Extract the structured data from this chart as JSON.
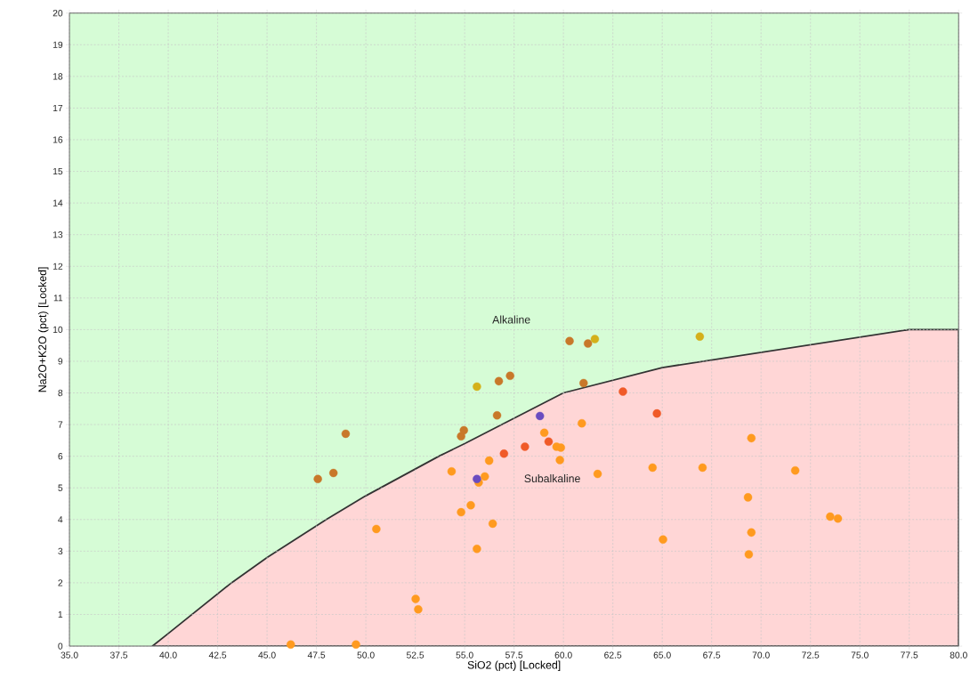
{
  "chart_data": {
    "type": "scatter",
    "xlabel": "SiO2 (pct) [Locked]",
    "ylabel": "Na2O+K2O (pct) [Locked]",
    "xlim": [
      35,
      80
    ],
    "ylim": [
      0,
      20
    ],
    "xticks": [
      {
        "value": 35,
        "label": "35.0"
      },
      {
        "value": 37.5,
        "label": "37.5"
      },
      {
        "value": 40,
        "label": "40.0"
      },
      {
        "value": 42.5,
        "label": "42.5"
      },
      {
        "value": 45,
        "label": "45.0"
      },
      {
        "value": 47.5,
        "label": "47.5"
      },
      {
        "value": 50,
        "label": "50.0"
      },
      {
        "value": 52.5,
        "label": "52.5"
      },
      {
        "value": 55,
        "label": "55.0"
      },
      {
        "value": 57.5,
        "label": "57.5"
      },
      {
        "value": 60,
        "label": "60.0"
      },
      {
        "value": 62.5,
        "label": "62.5"
      },
      {
        "value": 65,
        "label": "65.0"
      },
      {
        "value": 67.5,
        "label": "67.5"
      },
      {
        "value": 70,
        "label": "70.0"
      },
      {
        "value": 72.5,
        "label": "72.5"
      },
      {
        "value": 75,
        "label": "75.0"
      },
      {
        "value": 77.5,
        "label": "77.5"
      },
      {
        "value": 80,
        "label": "80.0"
      }
    ],
    "yticks": [
      0,
      1,
      2,
      3,
      4,
      5,
      6,
      7,
      8,
      9,
      10,
      11,
      12,
      13,
      14,
      15,
      16,
      17,
      18,
      19,
      20
    ],
    "grid": true,
    "marker": "circle",
    "bands": [
      {
        "axis": "y",
        "from": 0,
        "to": 20,
        "color": "#d6fcd6"
      }
    ],
    "annotations": [
      "Alkaline",
      "Subalkaline"
    ],
    "series": [
      {
        "type": "area",
        "marker": "none",
        "color": "#ffd6d6",
        "x": [
          39.2,
          40,
          43.2,
          45,
          48,
          50,
          53.7,
          55,
          60,
          65,
          77.5,
          80
        ],
        "values": [
          0,
          0.4,
          2,
          2.8,
          4,
          4.75,
          6,
          6.4,
          8,
          8.8,
          10,
          10
        ]
      },
      {
        "color": "#ff9a1f",
        "x": [
          46.2,
          49.5,
          50.53,
          52.52,
          52.65,
          54.34,
          54.82,
          55.31,
          55.62,
          55.71,
          56.02,
          56.24,
          56.42,
          59.03,
          59.65,
          59.87,
          59.82,
          60.93,
          61.73,
          64.51,
          65.04,
          67.04,
          69.34,
          69.51,
          69.51,
          69.38,
          71.73,
          73.5,
          73.89
        ],
        "values": [
          0.05,
          0.05,
          3.7,
          1.49,
          1.16,
          5.52,
          4.23,
          4.45,
          3.07,
          5.17,
          5.36,
          5.86,
          3.87,
          6.74,
          6.3,
          6.27,
          5.88,
          7.04,
          5.44,
          5.64,
          3.37,
          5.64,
          4.7,
          6.57,
          3.59,
          2.9,
          5.55,
          4.09,
          4.03
        ]
      },
      {
        "color": "#f05a28",
        "x": [
          56.99,
          58.05,
          59.25,
          63.01,
          64.73
        ],
        "values": [
          6.08,
          6.3,
          6.46,
          8.04,
          7.35
        ]
      },
      {
        "color": "#c8782a",
        "x": [
          47.57,
          48.36,
          48.98,
          54.82,
          54.96,
          56.64,
          56.73,
          57.3,
          60.31,
          61.24,
          61.02
        ],
        "values": [
          5.28,
          5.47,
          6.71,
          6.63,
          6.82,
          7.29,
          8.37,
          8.54,
          9.64,
          9.56,
          8.31
        ]
      },
      {
        "color": "#d4b01a",
        "x": [
          55.62,
          61.59,
          66.9
        ],
        "values": [
          8.2,
          9.7,
          9.78
        ]
      },
      {
        "color": "#6a4cc0",
        "x": [
          55.62,
          58.81
        ],
        "values": [
          5.28,
          7.27
        ]
      }
    ]
  }
}
